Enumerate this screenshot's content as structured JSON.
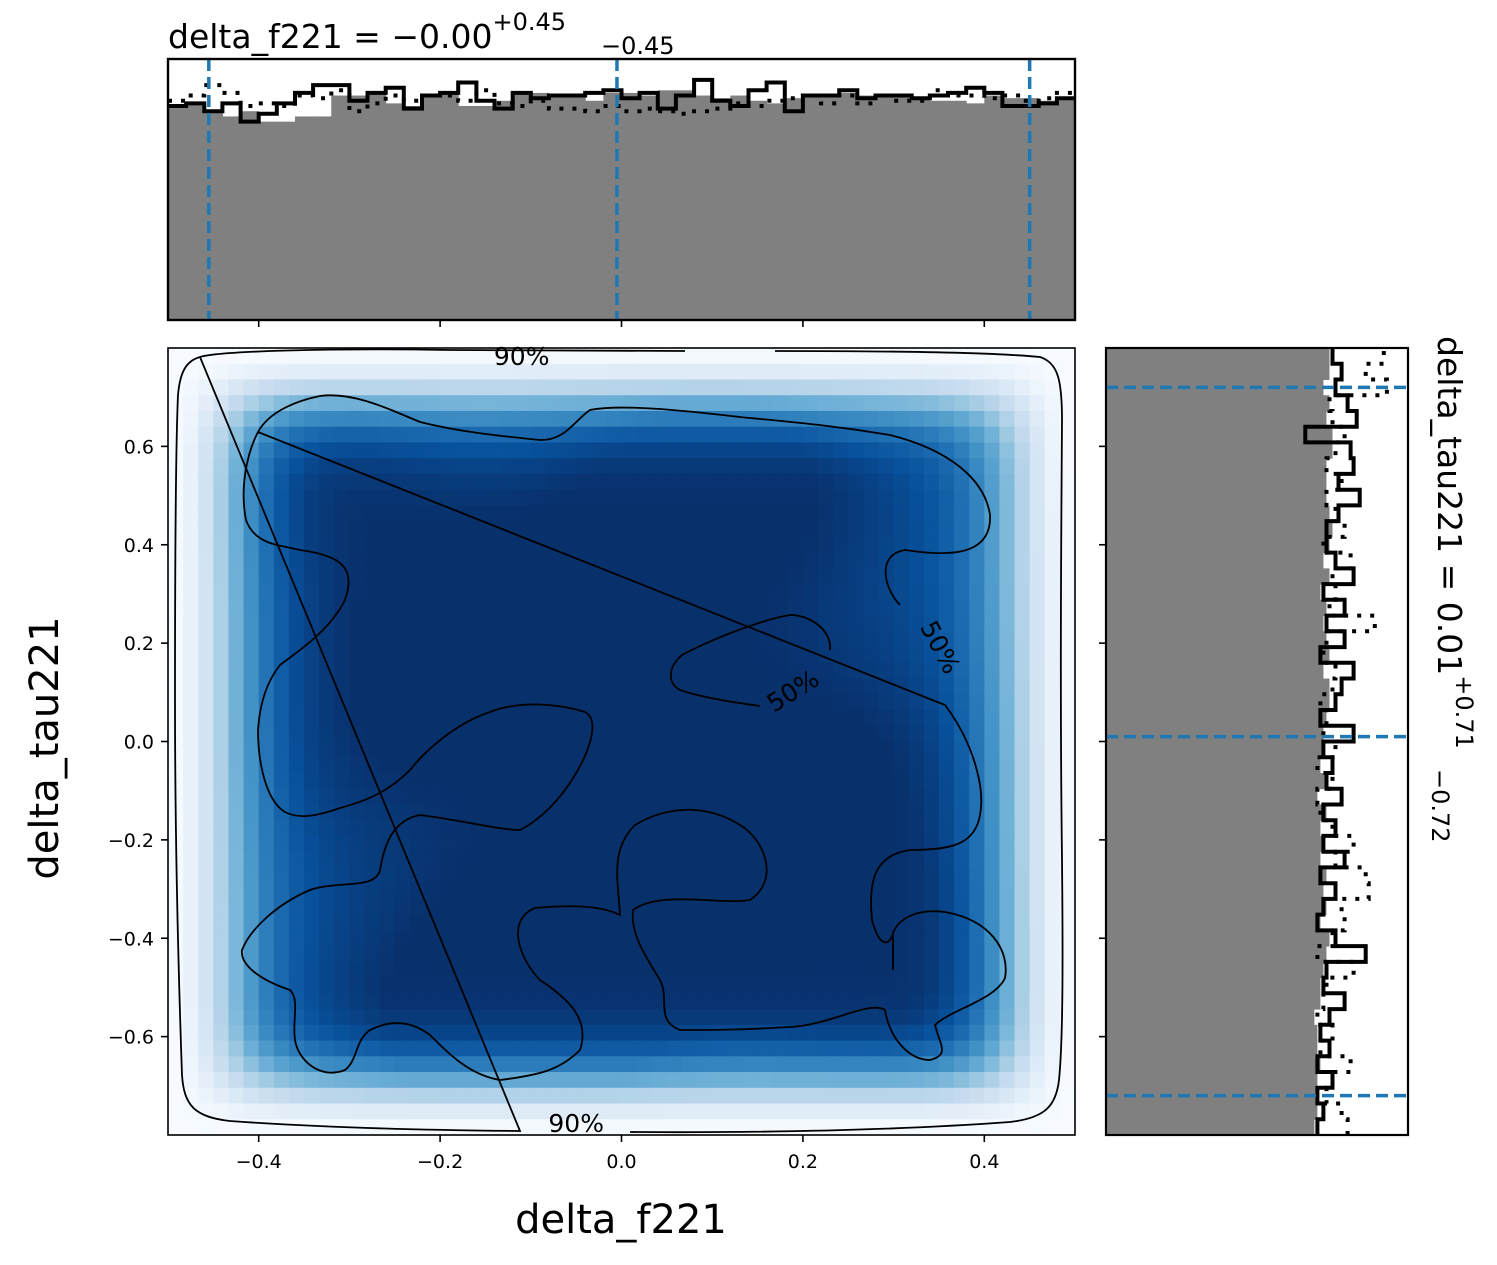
{
  "chart_data": [
    {
      "panel": "top-marginal",
      "type": "area",
      "parameter": "delta_f221",
      "title": {
        "prefix": "delta_f221 = ",
        "median": "−0.00",
        "upper": "+0.45",
        "lower": "−0.45"
      },
      "xlim": [
        -0.5,
        0.5
      ],
      "ylim": [
        0,
        1
      ],
      "y_ticks_visible": false,
      "quantile_lines": [
        -0.455,
        -0.005,
        0.45
      ],
      "quantile_line_color": "#1f77b4",
      "fill_color": "#808080",
      "bins": 50,
      "histogram_filled": [
        0.82,
        0.83,
        0.8,
        0.78,
        0.8,
        0.76,
        0.76,
        0.78,
        0.78,
        0.86,
        0.86,
        0.87,
        0.83,
        0.82,
        0.86,
        0.87,
        0.82,
        0.82,
        0.84,
        0.87,
        0.87,
        0.86,
        0.86,
        0.84,
        0.87,
        0.87,
        0.86,
        0.88,
        0.88,
        0.86,
        0.85,
        0.86,
        0.84,
        0.83,
        0.85,
        0.86,
        0.86,
        0.87,
        0.86,
        0.86,
        0.86,
        0.85,
        0.84,
        0.84,
        0.83,
        0.86,
        0.85,
        0.85,
        0.84,
        0.85
      ],
      "histogram_step": [
        0.82,
        0.83,
        0.8,
        0.83,
        0.76,
        0.79,
        0.83,
        0.87,
        0.9,
        0.9,
        0.84,
        0.87,
        0.89,
        0.81,
        0.86,
        0.87,
        0.91,
        0.84,
        0.81,
        0.87,
        0.85,
        0.86,
        0.86,
        0.87,
        0.88,
        0.85,
        0.87,
        0.81,
        0.86,
        0.92,
        0.84,
        0.82,
        0.88,
        0.91,
        0.8,
        0.86,
        0.86,
        0.88,
        0.85,
        0.86,
        0.86,
        0.85,
        0.86,
        0.87,
        0.89,
        0.87,
        0.82,
        0.82,
        0.83,
        0.85
      ],
      "histogram_dotted": [
        0.84,
        0.86,
        0.9,
        0.87,
        0.82,
        0.83,
        0.82,
        0.86,
        0.85,
        0.88,
        0.8,
        0.83,
        0.86,
        0.84,
        0.86,
        0.86,
        0.84,
        0.88,
        0.83,
        0.82,
        0.84,
        0.81,
        0.81,
        0.8,
        0.82,
        0.8,
        0.81,
        0.8,
        0.79,
        0.8,
        0.81,
        0.83,
        0.82,
        0.84,
        0.85,
        0.86,
        0.83,
        0.86,
        0.83,
        0.86,
        0.84,
        0.84,
        0.88,
        0.86,
        0.86,
        0.85,
        0.86,
        0.84,
        0.85,
        0.87
      ]
    },
    {
      "panel": "joint",
      "type": "heatmap",
      "xlabel": "delta_f221",
      "ylabel": "delta_tau221",
      "xlim": [
        -0.5,
        0.5
      ],
      "ylim": [
        -0.8,
        0.8
      ],
      "x_ticks": [
        -0.4,
        -0.2,
        0.0,
        0.2,
        0.4
      ],
      "x_tick_labels": [
        "−0.4",
        "−0.2",
        "0.0",
        "0.2",
        "0.4"
      ],
      "y_ticks": [
        -0.6,
        -0.4,
        -0.2,
        0.0,
        0.2,
        0.4,
        0.6
      ],
      "y_tick_labels": [
        "−0.6",
        "−0.4",
        "−0.2",
        "0.0",
        "0.2",
        "0.4",
        "0.6"
      ],
      "colormap": "Blues",
      "density_peaks": [
        {
          "x": -0.34,
          "y": 0.56,
          "z": 1.0
        },
        {
          "x": -0.13,
          "y": 0.25,
          "z": 1.0
        },
        {
          "x": -0.29,
          "y": 0.0,
          "z": 0.88
        },
        {
          "x": 0.06,
          "y": 0.58,
          "z": 0.95
        },
        {
          "x": 0.2,
          "y": 0.5,
          "z": 0.78
        },
        {
          "x": 0.27,
          "y": -0.06,
          "z": 1.0
        },
        {
          "x": 0.04,
          "y": 0.02,
          "z": 0.78
        },
        {
          "x": -0.07,
          "y": -0.38,
          "z": 0.75
        },
        {
          "x": -0.08,
          "y": -0.62,
          "z": 0.92
        },
        {
          "x": 0.33,
          "y": -0.55,
          "z": 0.85
        },
        {
          "x": -0.25,
          "y": -0.6,
          "z": 0.75
        },
        {
          "x": 0.18,
          "y": -0.4,
          "z": 0.78
        }
      ],
      "contour_levels": [
        "50%",
        "90%"
      ],
      "contour_labels": [
        {
          "text": "90%",
          "x": -0.11,
          "y": 0.78,
          "angle": 0
        },
        {
          "text": "90%",
          "x": -0.05,
          "y": -0.78,
          "angle": 0
        },
        {
          "text": "50%",
          "x": 0.19,
          "y": 0.1,
          "angle": -32
        },
        {
          "text": "50%",
          "x": 0.35,
          "y": 0.19,
          "angle": 62
        }
      ]
    },
    {
      "panel": "right-marginal",
      "type": "area",
      "parameter": "delta_tau221",
      "title": {
        "prefix": "delta_tau221 = ",
        "median": "0.01",
        "upper": "+0.71",
        "lower": "−0.72"
      },
      "ylim": [
        -0.8,
        0.8
      ],
      "xlim": [
        0,
        1
      ],
      "x_ticks_visible": false,
      "quantile_lines": [
        -0.72,
        0.01,
        0.72
      ],
      "quantile_line_color": "#1f77b4",
      "fill_color": "#808080",
      "bins": 50,
      "histogram_filled": [
        0.69,
        0.7,
        0.7,
        0.7,
        0.71,
        0.7,
        0.7,
        0.69,
        0.71,
        0.71,
        0.72,
        0.73,
        0.74,
        0.71,
        0.73,
        0.72,
        0.73,
        0.71,
        0.72,
        0.71,
        0.73,
        0.7,
        0.73,
        0.71,
        0.72,
        0.72,
        0.73,
        0.74,
        0.74,
        0.72,
        0.74,
        0.73,
        0.72,
        0.73,
        0.71,
        0.74,
        0.72,
        0.74,
        0.75,
        0.74,
        0.73,
        0.73,
        0.73,
        0.75,
        0.75,
        0.73,
        0.74,
        0.72,
        0.74,
        0.74
      ],
      "histogram_step": [
        0.7,
        0.72,
        0.7,
        0.75,
        0.7,
        0.74,
        0.71,
        0.74,
        0.79,
        0.72,
        0.73,
        0.86,
        0.76,
        0.7,
        0.72,
        0.76,
        0.71,
        0.79,
        0.72,
        0.76,
        0.72,
        0.78,
        0.73,
        0.75,
        0.72,
        0.82,
        0.71,
        0.76,
        0.78,
        0.82,
        0.71,
        0.79,
        0.73,
        0.79,
        0.72,
        0.82,
        0.76,
        0.73,
        0.73,
        0.77,
        0.84,
        0.77,
        0.82,
        0.81,
        0.66,
        0.83,
        0.8,
        0.76,
        0.78,
        0.75
      ],
      "histogram_dotted": [
        0.8,
        0.78,
        0.73,
        0.75,
        0.81,
        0.71,
        0.75,
        0.7,
        0.72,
        0.73,
        0.82,
        0.7,
        0.75,
        0.79,
        0.78,
        0.87,
        0.86,
        0.76,
        0.82,
        0.75,
        0.71,
        0.7,
        0.75,
        0.7,
        0.76,
        0.72,
        0.73,
        0.71,
        0.75,
        0.76,
        0.72,
        0.73,
        0.89,
        0.74,
        0.76,
        0.75,
        0.81,
        0.72,
        0.79,
        0.76,
        0.73,
        0.78,
        0.73,
        0.76,
        0.79,
        0.75,
        0.74,
        0.93,
        0.86,
        0.92
      ]
    }
  ]
}
